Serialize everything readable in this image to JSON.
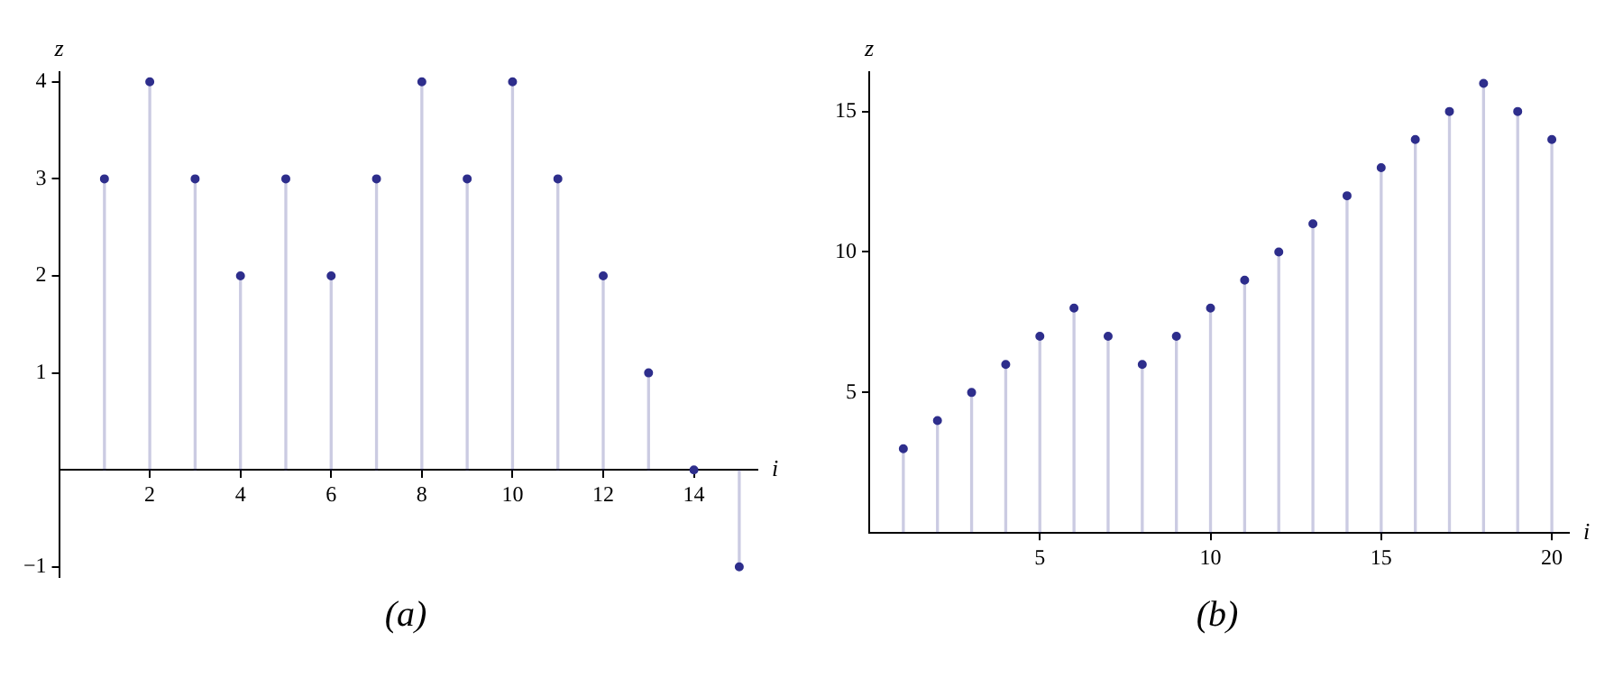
{
  "chart_data": [
    {
      "type": "lollipop",
      "xlabel": "i",
      "ylabel": "z",
      "annotations": [
        "(a)"
      ],
      "x": [
        1,
        2,
        3,
        4,
        5,
        6,
        7,
        8,
        9,
        10,
        11,
        12,
        13,
        14,
        15
      ],
      "series": [
        {
          "color": "#2e2e8c",
          "values": [
            3,
            4,
            3,
            2,
            3,
            2,
            3,
            4,
            3,
            4,
            3,
            2,
            1,
            0,
            -1
          ]
        }
      ],
      "xlim": [
        0,
        15.4
      ],
      "ylim": [
        -1.1,
        4.1
      ],
      "xticks": [
        2,
        4,
        6,
        8,
        10,
        12,
        14
      ],
      "yticks": [
        -1,
        1,
        2,
        3,
        4
      ],
      "grid": false,
      "legend": false,
      "marker": "circle"
    },
    {
      "type": "lollipop",
      "xlabel": "i",
      "ylabel": "z",
      "annotations": [
        "(b)"
      ],
      "x": [
        1,
        2,
        3,
        4,
        5,
        6,
        7,
        8,
        9,
        10,
        11,
        12,
        13,
        14,
        15,
        16,
        17,
        18,
        19,
        20
      ],
      "series": [
        {
          "color": "#2e2e8c",
          "values": [
            3,
            4,
            5,
            6,
            7,
            8,
            7,
            6,
            7,
            8,
            9,
            10,
            11,
            12,
            13,
            14,
            15,
            16,
            15,
            14
          ]
        }
      ],
      "xlim": [
        0,
        20.5
      ],
      "ylim": [
        0,
        16.4
      ],
      "xticks": [
        5,
        10,
        15,
        20
      ],
      "yticks": [
        5,
        10,
        15
      ],
      "grid": false,
      "legend": false,
      "marker": "circle"
    }
  ]
}
